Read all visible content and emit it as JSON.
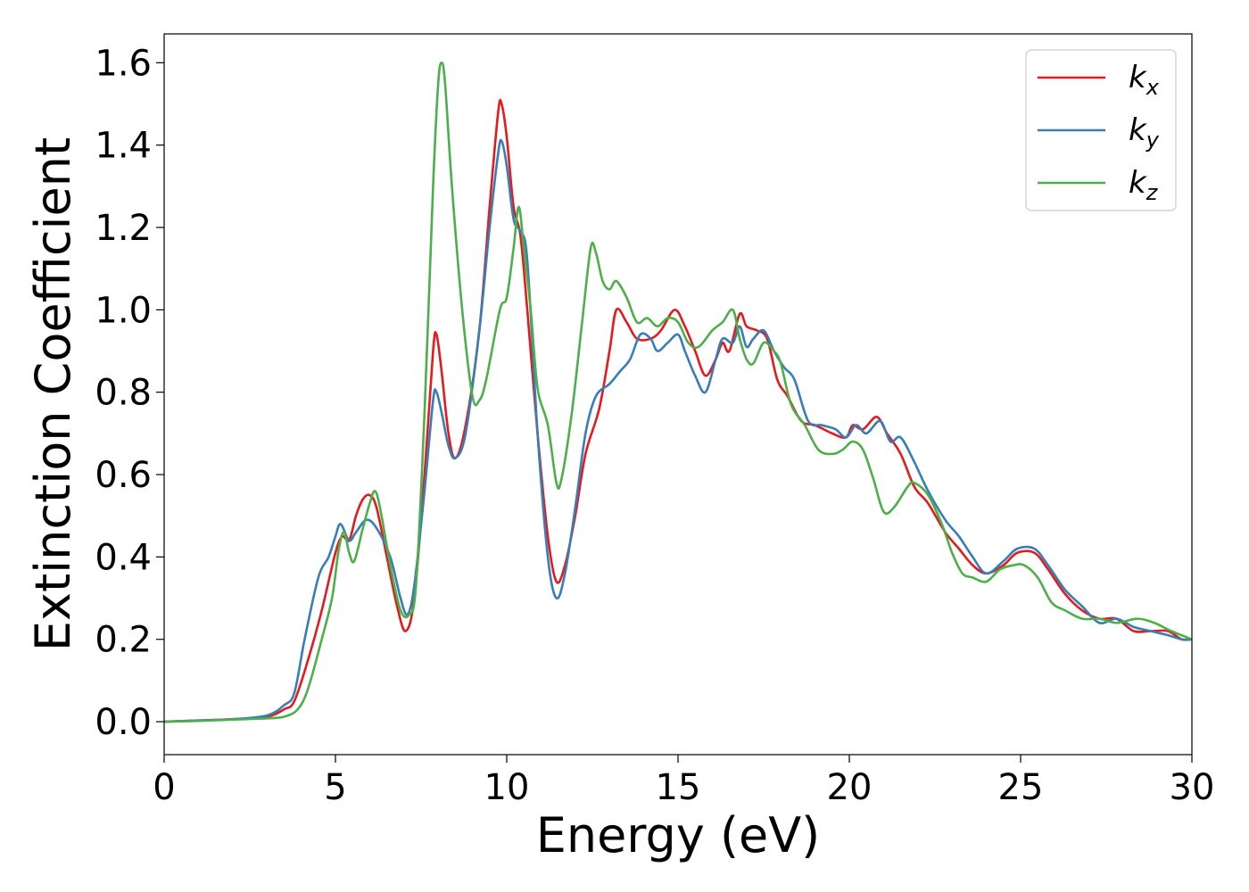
{
  "chart_data": {
    "type": "line",
    "title": "",
    "xlabel": "Energy (eV)",
    "ylabel": "Extinction Coefficient",
    "xlim": [
      0,
      30
    ],
    "ylim": [
      -0.08,
      1.67
    ],
    "xticks": [
      "0",
      "5",
      "10",
      "15",
      "20",
      "25",
      "30"
    ],
    "yticks": [
      "0.0",
      "0.2",
      "0.4",
      "0.6",
      "0.8",
      "1.0",
      "1.2",
      "1.4",
      "1.6"
    ],
    "grid": false,
    "legend_position": "top-right",
    "series": [
      {
        "name": "k_x",
        "label_main": "k",
        "label_sub": "x",
        "color": "#e41a1c",
        "points": [
          [
            0,
            0
          ],
          [
            1,
            0.003
          ],
          [
            2,
            0.006
          ],
          [
            3,
            0.012
          ],
          [
            3.5,
            0.03
          ],
          [
            3.8,
            0.05
          ],
          [
            4.2,
            0.15
          ],
          [
            4.6,
            0.27
          ],
          [
            5,
            0.41
          ],
          [
            5.2,
            0.45
          ],
          [
            5.4,
            0.44
          ],
          [
            5.6,
            0.5
          ],
          [
            5.8,
            0.54
          ],
          [
            6,
            0.55
          ],
          [
            6.2,
            0.52
          ],
          [
            6.5,
            0.4
          ],
          [
            6.8,
            0.28
          ],
          [
            7.05,
            0.22
          ],
          [
            7.3,
            0.3
          ],
          [
            7.6,
            0.6
          ],
          [
            7.85,
            0.9
          ],
          [
            7.95,
            0.94
          ],
          [
            8.1,
            0.85
          ],
          [
            8.3,
            0.7
          ],
          [
            8.5,
            0.64
          ],
          [
            8.8,
            0.72
          ],
          [
            9.2,
            0.95
          ],
          [
            9.5,
            1.25
          ],
          [
            9.75,
            1.48
          ],
          [
            9.85,
            1.5
          ],
          [
            10,
            1.42
          ],
          [
            10.2,
            1.25
          ],
          [
            10.4,
            1.18
          ],
          [
            10.6,
            1.0
          ],
          [
            10.9,
            0.7
          ],
          [
            11.2,
            0.45
          ],
          [
            11.45,
            0.34
          ],
          [
            11.7,
            0.38
          ],
          [
            12,
            0.5
          ],
          [
            12.3,
            0.65
          ],
          [
            12.7,
            0.76
          ],
          [
            13.0,
            0.9
          ],
          [
            13.2,
            1.0
          ],
          [
            13.5,
            0.97
          ],
          [
            13.8,
            0.93
          ],
          [
            14.2,
            0.93
          ],
          [
            14.5,
            0.95
          ],
          [
            14.9,
            1.0
          ],
          [
            15.2,
            0.96
          ],
          [
            15.5,
            0.9
          ],
          [
            15.8,
            0.84
          ],
          [
            16.1,
            0.88
          ],
          [
            16.3,
            0.92
          ],
          [
            16.5,
            0.9
          ],
          [
            16.8,
            0.99
          ],
          [
            17,
            0.96
          ],
          [
            17.3,
            0.95
          ],
          [
            17.6,
            0.93
          ],
          [
            17.9,
            0.83
          ],
          [
            18.2,
            0.79
          ],
          [
            18.6,
            0.73
          ],
          [
            19,
            0.72
          ],
          [
            19.5,
            0.7
          ],
          [
            19.9,
            0.69
          ],
          [
            20.1,
            0.72
          ],
          [
            20.4,
            0.71
          ],
          [
            20.8,
            0.74
          ],
          [
            21.1,
            0.7
          ],
          [
            21.5,
            0.65
          ],
          [
            21.9,
            0.57
          ],
          [
            22.3,
            0.53
          ],
          [
            22.8,
            0.46
          ],
          [
            23.2,
            0.42
          ],
          [
            23.6,
            0.38
          ],
          [
            24,
            0.36
          ],
          [
            24.5,
            0.38
          ],
          [
            24.9,
            0.41
          ],
          [
            25.4,
            0.41
          ],
          [
            25.8,
            0.37
          ],
          [
            26.3,
            0.31
          ],
          [
            26.8,
            0.27
          ],
          [
            27.3,
            0.25
          ],
          [
            27.8,
            0.25
          ],
          [
            28.3,
            0.22
          ],
          [
            28.8,
            0.22
          ],
          [
            29.3,
            0.22
          ],
          [
            29.7,
            0.2
          ],
          [
            30,
            0.2
          ]
        ]
      },
      {
        "name": "k_y",
        "label_main": "k",
        "label_sub": "y",
        "color": "#377eb8",
        "points": [
          [
            0,
            0
          ],
          [
            1,
            0.003
          ],
          [
            2,
            0.006
          ],
          [
            3,
            0.015
          ],
          [
            3.5,
            0.04
          ],
          [
            3.8,
            0.07
          ],
          [
            4.1,
            0.2
          ],
          [
            4.5,
            0.35
          ],
          [
            4.8,
            0.4
          ],
          [
            5.0,
            0.45
          ],
          [
            5.15,
            0.48
          ],
          [
            5.4,
            0.44
          ],
          [
            5.6,
            0.46
          ],
          [
            5.9,
            0.49
          ],
          [
            6.2,
            0.47
          ],
          [
            6.6,
            0.4
          ],
          [
            6.9,
            0.3
          ],
          [
            7.1,
            0.26
          ],
          [
            7.3,
            0.33
          ],
          [
            7.6,
            0.56
          ],
          [
            7.85,
            0.78
          ],
          [
            7.95,
            0.8
          ],
          [
            8.1,
            0.75
          ],
          [
            8.3,
            0.67
          ],
          [
            8.5,
            0.64
          ],
          [
            8.8,
            0.7
          ],
          [
            9.2,
            0.95
          ],
          [
            9.5,
            1.2
          ],
          [
            9.75,
            1.38
          ],
          [
            9.85,
            1.41
          ],
          [
            10,
            1.35
          ],
          [
            10.2,
            1.22
          ],
          [
            10.4,
            1.19
          ],
          [
            10.6,
            1.12
          ],
          [
            10.9,
            0.7
          ],
          [
            11.2,
            0.4
          ],
          [
            11.45,
            0.3
          ],
          [
            11.7,
            0.36
          ],
          [
            12,
            0.52
          ],
          [
            12.3,
            0.7
          ],
          [
            12.6,
            0.79
          ],
          [
            13,
            0.82
          ],
          [
            13.3,
            0.85
          ],
          [
            13.6,
            0.88
          ],
          [
            13.9,
            0.94
          ],
          [
            14.2,
            0.93
          ],
          [
            14.4,
            0.9
          ],
          [
            14.7,
            0.92
          ],
          [
            15.0,
            0.94
          ],
          [
            15.2,
            0.9
          ],
          [
            15.5,
            0.84
          ],
          [
            15.8,
            0.8
          ],
          [
            16.1,
            0.88
          ],
          [
            16.3,
            0.93
          ],
          [
            16.6,
            0.92
          ],
          [
            16.8,
            0.96
          ],
          [
            17,
            0.91
          ],
          [
            17.2,
            0.93
          ],
          [
            17.5,
            0.95
          ],
          [
            17.8,
            0.9
          ],
          [
            18.1,
            0.86
          ],
          [
            18.4,
            0.83
          ],
          [
            18.8,
            0.73
          ],
          [
            19.2,
            0.72
          ],
          [
            19.6,
            0.71
          ],
          [
            19.9,
            0.69
          ],
          [
            20.2,
            0.72
          ],
          [
            20.5,
            0.7
          ],
          [
            20.9,
            0.73
          ],
          [
            21.2,
            0.68
          ],
          [
            21.5,
            0.69
          ],
          [
            21.9,
            0.63
          ],
          [
            22.3,
            0.56
          ],
          [
            22.8,
            0.49
          ],
          [
            23.2,
            0.45
          ],
          [
            23.6,
            0.4
          ],
          [
            24,
            0.36
          ],
          [
            24.5,
            0.39
          ],
          [
            24.9,
            0.42
          ],
          [
            25.4,
            0.42
          ],
          [
            25.8,
            0.38
          ],
          [
            26.3,
            0.32
          ],
          [
            26.8,
            0.28
          ],
          [
            27.3,
            0.24
          ],
          [
            27.8,
            0.25
          ],
          [
            28.3,
            0.23
          ],
          [
            28.8,
            0.22
          ],
          [
            29.3,
            0.21
          ],
          [
            29.7,
            0.2
          ],
          [
            30,
            0.2
          ]
        ]
      },
      {
        "name": "k_z",
        "label_main": "k",
        "label_sub": "z",
        "color": "#4daf4a",
        "points": [
          [
            0,
            0
          ],
          [
            1,
            0.002
          ],
          [
            2,
            0.005
          ],
          [
            3,
            0.008
          ],
          [
            3.5,
            0.012
          ],
          [
            3.9,
            0.03
          ],
          [
            4.2,
            0.08
          ],
          [
            4.6,
            0.2
          ],
          [
            4.9,
            0.3
          ],
          [
            5.1,
            0.42
          ],
          [
            5.25,
            0.46
          ],
          [
            5.4,
            0.41
          ],
          [
            5.55,
            0.39
          ],
          [
            5.8,
            0.47
          ],
          [
            6.0,
            0.53
          ],
          [
            6.15,
            0.56
          ],
          [
            6.3,
            0.52
          ],
          [
            6.6,
            0.38
          ],
          [
            6.9,
            0.27
          ],
          [
            7.15,
            0.26
          ],
          [
            7.35,
            0.33
          ],
          [
            7.6,
            0.75
          ],
          [
            7.85,
            1.3
          ],
          [
            8.0,
            1.55
          ],
          [
            8.1,
            1.6
          ],
          [
            8.2,
            1.55
          ],
          [
            8.4,
            1.3
          ],
          [
            8.7,
            1.0
          ],
          [
            9.0,
            0.79
          ],
          [
            9.2,
            0.78
          ],
          [
            9.4,
            0.83
          ],
          [
            9.8,
            1.0
          ],
          [
            10.0,
            1.03
          ],
          [
            10.2,
            1.15
          ],
          [
            10.35,
            1.25
          ],
          [
            10.5,
            1.15
          ],
          [
            10.7,
            1.0
          ],
          [
            10.9,
            0.81
          ],
          [
            11.2,
            0.72
          ],
          [
            11.45,
            0.58
          ],
          [
            11.6,
            0.59
          ],
          [
            11.9,
            0.75
          ],
          [
            12.2,
            0.97
          ],
          [
            12.45,
            1.15
          ],
          [
            12.6,
            1.14
          ],
          [
            12.8,
            1.07
          ],
          [
            13.0,
            1.05
          ],
          [
            13.2,
            1.07
          ],
          [
            13.5,
            1.03
          ],
          [
            13.8,
            0.97
          ],
          [
            14.1,
            0.98
          ],
          [
            14.4,
            0.96
          ],
          [
            14.7,
            0.98
          ],
          [
            15.0,
            0.97
          ],
          [
            15.3,
            0.92
          ],
          [
            15.6,
            0.91
          ],
          [
            16.0,
            0.95
          ],
          [
            16.3,
            0.97
          ],
          [
            16.6,
            1.0
          ],
          [
            16.8,
            0.93
          ],
          [
            17.0,
            0.88
          ],
          [
            17.2,
            0.87
          ],
          [
            17.5,
            0.92
          ],
          [
            17.8,
            0.9
          ],
          [
            18.0,
            0.87
          ],
          [
            18.3,
            0.77
          ],
          [
            18.7,
            0.72
          ],
          [
            19.1,
            0.66
          ],
          [
            19.5,
            0.65
          ],
          [
            19.8,
            0.66
          ],
          [
            20.1,
            0.68
          ],
          [
            20.4,
            0.66
          ],
          [
            20.7,
            0.59
          ],
          [
            21.0,
            0.51
          ],
          [
            21.3,
            0.52
          ],
          [
            21.7,
            0.57
          ],
          [
            21.9,
            0.58
          ],
          [
            22.3,
            0.55
          ],
          [
            22.7,
            0.48
          ],
          [
            23.0,
            0.41
          ],
          [
            23.3,
            0.36
          ],
          [
            23.6,
            0.35
          ],
          [
            24.0,
            0.34
          ],
          [
            24.4,
            0.37
          ],
          [
            24.8,
            0.38
          ],
          [
            25.1,
            0.38
          ],
          [
            25.5,
            0.35
          ],
          [
            25.9,
            0.29
          ],
          [
            26.3,
            0.27
          ],
          [
            26.8,
            0.25
          ],
          [
            27.3,
            0.25
          ],
          [
            27.8,
            0.24
          ],
          [
            28.4,
            0.25
          ],
          [
            28.9,
            0.24
          ],
          [
            29.4,
            0.22
          ],
          [
            30,
            0.2
          ]
        ]
      }
    ]
  }
}
